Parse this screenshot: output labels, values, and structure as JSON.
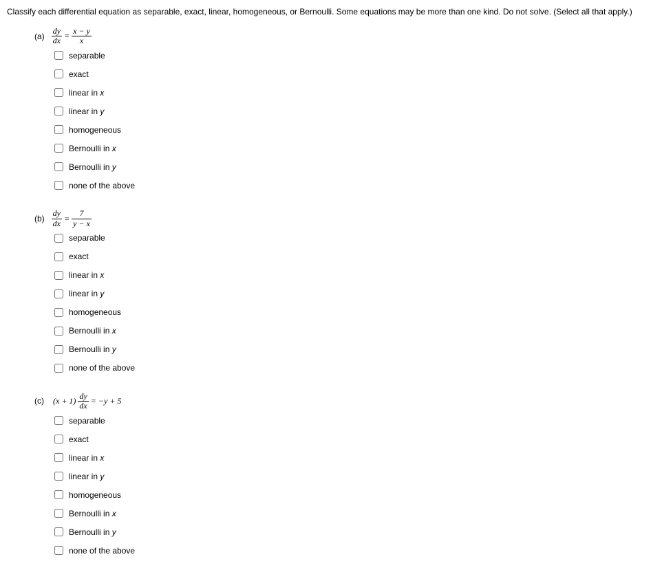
{
  "instructions": "Classify each differential equation as separable, exact, linear, homogeneous, or Bernoulli. Some equations may be more than one kind. Do not solve. (Select all that apply.)",
  "questions": [
    {
      "label": "(a)",
      "equation": {
        "left_num": "dy",
        "left_den": "dx",
        "right_num": "x − y",
        "right_den": "x"
      },
      "options": [
        "separable",
        "exact",
        "linear in x",
        "linear in y",
        "homogeneous",
        "Bernoulli in x",
        "Bernoulli in y",
        "none of the above"
      ]
    },
    {
      "label": "(b)",
      "equation": {
        "left_num": "dy",
        "left_den": "dx",
        "right_num": "7",
        "right_den": "y − x"
      },
      "options": [
        "separable",
        "exact",
        "linear in x",
        "linear in y",
        "homogeneous",
        "Bernoulli in x",
        "Bernoulli in y",
        "none of the above"
      ]
    },
    {
      "label": "(c)",
      "equation_c": {
        "prefix": "(x + 1)",
        "frac_num": "dy",
        "frac_den": "dx",
        "suffix": " = −y + 5"
      },
      "options": [
        "separable",
        "exact",
        "linear in x",
        "linear in y",
        "homogeneous",
        "Bernoulli in x",
        "Bernoulli in y",
        "none of the above"
      ]
    }
  ]
}
